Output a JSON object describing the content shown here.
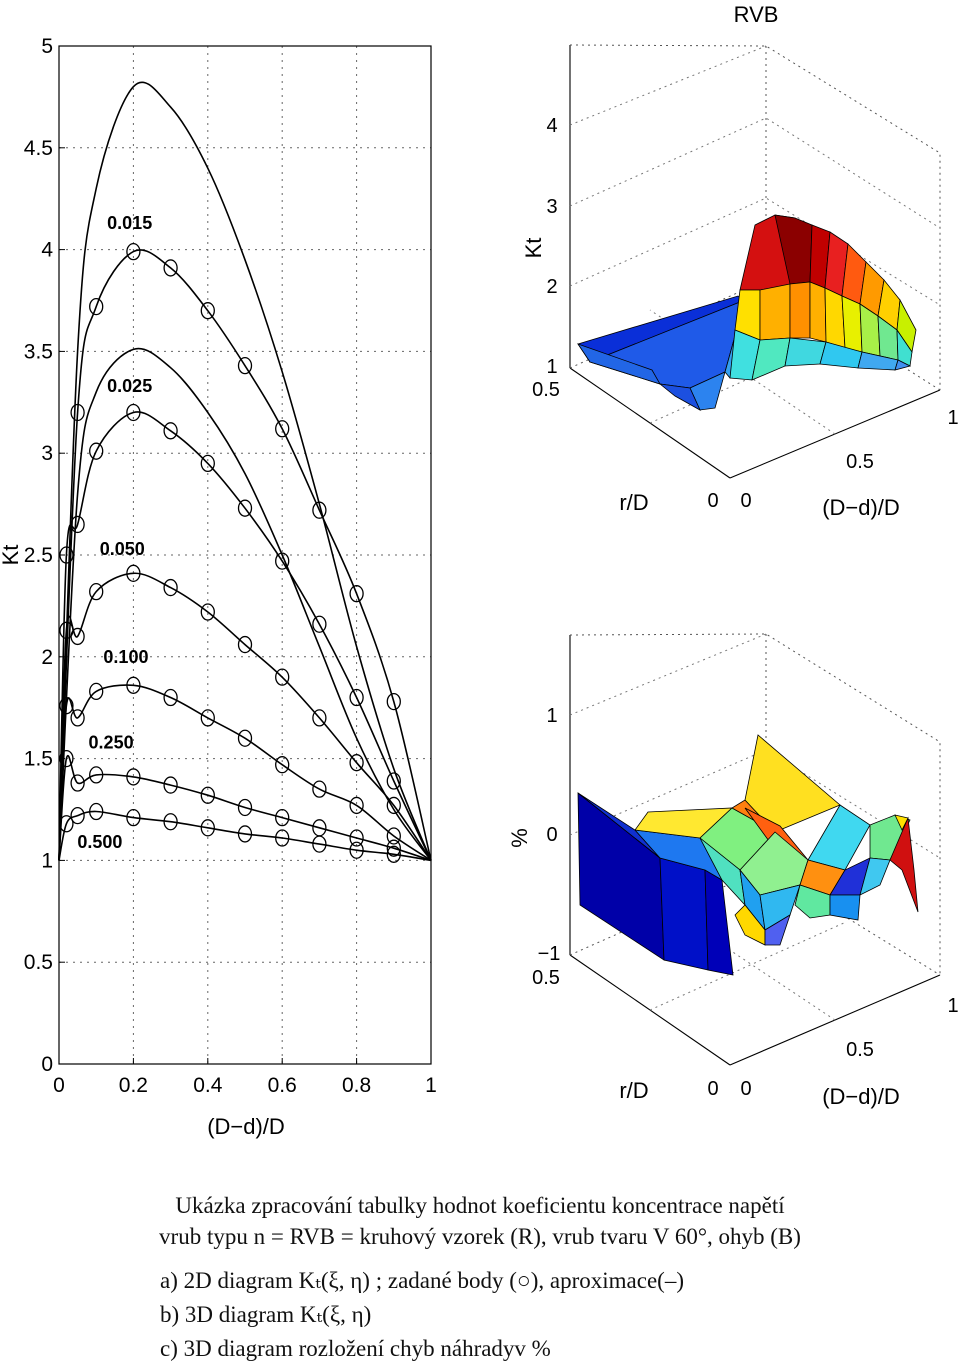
{
  "chart_data": [
    {
      "type": "line",
      "subtitle": "a",
      "xlabel": "(D−d)/D",
      "ylabel": "Kt",
      "xlim": [
        0,
        1
      ],
      "ylim": [
        0,
        5
      ],
      "xticks": [
        "0",
        "0.2",
        "0.4",
        "0.6",
        "0.8",
        "1"
      ],
      "yticks": [
        "0",
        "0.5",
        "1",
        "1.5",
        "2",
        "2.5",
        "3",
        "3.5",
        "4",
        "4.5",
        "5"
      ],
      "grid": true,
      "curve_labels": [
        "0.015",
        "0.025",
        "0.050",
        "0.100",
        "0.250",
        "0.500"
      ],
      "series": [
        {
          "label_index": 0,
          "x": [
            0,
            0.05,
            0.1,
            0.2,
            0.3,
            0.4,
            0.5,
            0.6,
            0.7,
            0.8,
            0.9,
            1
          ],
          "values": [
            1,
            3.5,
            4.3,
            4.8,
            4.7,
            4.4,
            3.95,
            3.4,
            2.75,
            2.05,
            1.45,
            1
          ]
        },
        {
          "label_index": 0,
          "x": [
            0,
            0.05,
            0.1,
            0.2,
            0.3,
            0.4,
            0.5,
            0.6,
            0.7,
            0.8,
            0.9,
            1
          ],
          "values": [
            1,
            3.2,
            3.72,
            3.99,
            3.91,
            3.7,
            3.43,
            3.12,
            2.72,
            2.31,
            1.78,
            1
          ],
          "markers": true
        },
        {
          "label_index": 1,
          "x": [
            0,
            0.05,
            0.1,
            0.2,
            0.3,
            0.4,
            0.5,
            0.6,
            0.7,
            0.8,
            0.9,
            1
          ],
          "values": [
            1,
            2.8,
            3.3,
            3.51,
            3.42,
            3.2,
            2.9,
            2.5,
            2.05,
            1.6,
            1.25,
            1
          ]
        },
        {
          "label_index": 1,
          "x": [
            0,
            0.02,
            0.05,
            0.1,
            0.2,
            0.3,
            0.4,
            0.5,
            0.6,
            0.7,
            0.8,
            0.9,
            1
          ],
          "values": [
            1,
            2.5,
            2.65,
            3.01,
            3.2,
            3.11,
            2.95,
            2.73,
            2.47,
            2.16,
            1.8,
            1.39,
            1
          ],
          "markers": true
        },
        {
          "label_index": 2,
          "x": [
            0,
            0.02,
            0.05,
            0.1,
            0.2,
            0.3,
            0.4,
            0.5,
            0.6,
            0.7,
            0.8,
            0.9,
            1
          ],
          "values": [
            1,
            2.13,
            2.1,
            2.32,
            2.41,
            2.34,
            2.22,
            2.06,
            1.9,
            1.7,
            1.48,
            1.27,
            1
          ],
          "markers": true
        },
        {
          "label_index": 3,
          "x": [
            0,
            0.02,
            0.05,
            0.1,
            0.2,
            0.3,
            0.4,
            0.5,
            0.6,
            0.7,
            0.8,
            0.9,
            1
          ],
          "values": [
            1,
            1.76,
            1.7,
            1.83,
            1.86,
            1.8,
            1.7,
            1.6,
            1.47,
            1.35,
            1.27,
            1.12,
            1
          ],
          "markers": true
        },
        {
          "label_index": 4,
          "x": [
            0,
            0.02,
            0.05,
            0.1,
            0.2,
            0.3,
            0.4,
            0.5,
            0.6,
            0.7,
            0.8,
            0.9,
            1
          ],
          "values": [
            1,
            1.5,
            1.38,
            1.42,
            1.41,
            1.37,
            1.32,
            1.26,
            1.21,
            1.16,
            1.11,
            1.06,
            1
          ],
          "markers": true
        },
        {
          "label_index": 5,
          "x": [
            0,
            0.02,
            0.05,
            0.1,
            0.2,
            0.3,
            0.4,
            0.5,
            0.6,
            0.7,
            0.8,
            0.9,
            1
          ],
          "values": [
            1,
            1.18,
            1.22,
            1.24,
            1.21,
            1.19,
            1.16,
            1.13,
            1.11,
            1.08,
            1.05,
            1.03,
            1
          ],
          "markers": true
        }
      ]
    },
    {
      "type": "surface",
      "subtitle": "b",
      "title": "RVB",
      "zlabel": "Kt",
      "xlabel": "(D−d)/D",
      "ylabel": "r/D",
      "zlim": [
        1,
        4
      ],
      "zticks": [
        "1",
        "2",
        "3",
        "4"
      ],
      "xticks": [
        "0",
        "0.5",
        "1"
      ],
      "yticks": [
        "0",
        "0.5"
      ],
      "grid": true,
      "colormap": "jet"
    },
    {
      "type": "surface",
      "subtitle": "c",
      "zlabel": "%",
      "xlabel": "(D−d)/D",
      "ylabel": "r/D",
      "zlim": [
        -1,
        1
      ],
      "zticks": [
        "−1",
        "0",
        "1"
      ],
      "xticks": [
        "0",
        "0.5",
        "1"
      ],
      "yticks": [
        "0",
        "0.5"
      ],
      "grid": true,
      "colormap": "jet"
    }
  ],
  "caption": {
    "line1": "Ukázka zpracování tabulky hodnot koeficientu koncentrace napětí",
    "line2": "vrub typu n = RVB = kruhový vzorek (R), vrub tvaru V 60°, ohyb (B)",
    "item_a": "a) 2D diagram Kₜ(ξ, η) ; zadané body (○),  aproximace(–)",
    "item_b": "b) 3D diagram Kₜ(ξ, η)",
    "item_c": "c) 3D diagram rozložení chyb náhradyv %"
  }
}
